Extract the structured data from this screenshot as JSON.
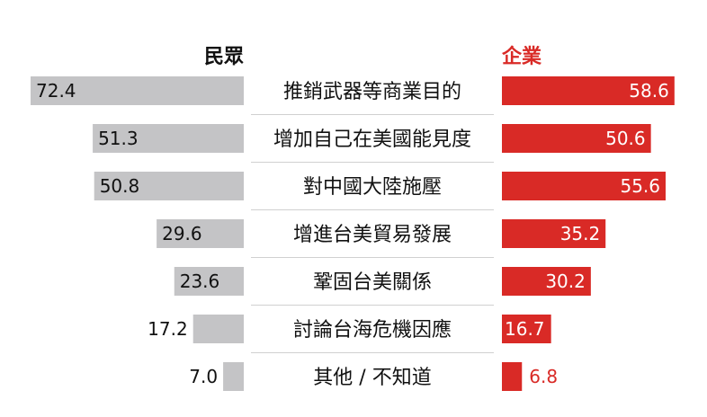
{
  "chart_data": {
    "type": "bar",
    "categories": [
      "推銷武器等商業目的",
      "增加自己在美國能見度",
      "對中國大陸施壓",
      "增進台美貿易發展",
      "鞏固台美關係",
      "討論台海危機因應",
      "其他 / 不知道"
    ],
    "series": [
      {
        "name": "民眾",
        "values": [
          72.4,
          51.3,
          50.8,
          29.6,
          23.6,
          17.2,
          7.0
        ],
        "labels": [
          "72.4",
          "51.3",
          "50.8",
          "29.6",
          "23.6",
          "17.2",
          "7.0"
        ]
      },
      {
        "name": "企業",
        "values": [
          58.6,
          50.6,
          55.6,
          35.2,
          30.2,
          16.7,
          6.8
        ],
        "labels": [
          "58.6",
          "50.6",
          "55.6",
          "35.2",
          "30.2",
          "16.7",
          "6.8"
        ]
      }
    ],
    "title": "",
    "xlabel": "",
    "ylabel": "",
    "orientation": "horizontal-diverging",
    "xlim": [
      0,
      75
    ]
  },
  "colors": {
    "public_bar": "#c4c4c6",
    "company_bar": "#d92a26",
    "public_header": "#111111",
    "company_header": "#d92a26",
    "separator": "#d0d0d0"
  }
}
